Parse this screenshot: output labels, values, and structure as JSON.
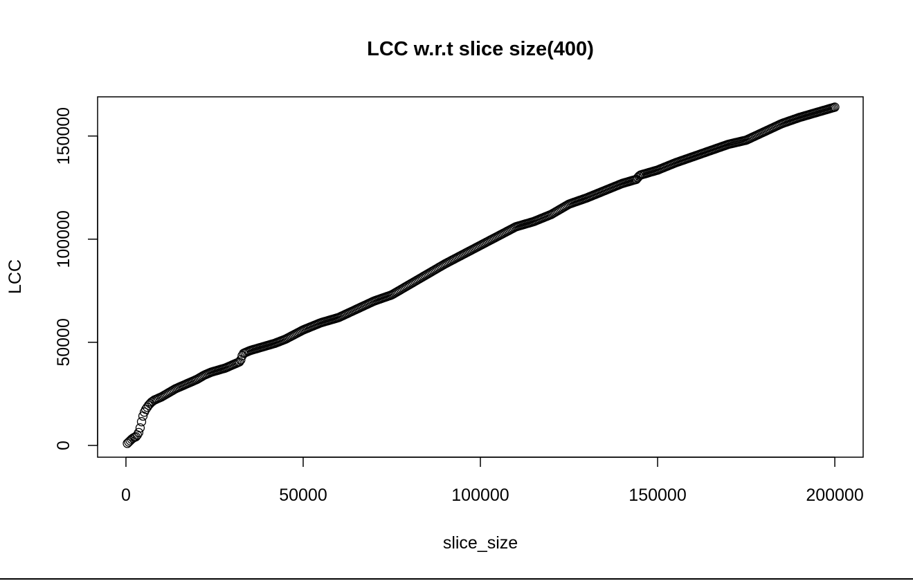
{
  "chart_data": {
    "type": "scatter",
    "title": "LCC w.r.t slice size(400)",
    "xlabel": "slice_size",
    "ylabel": "LCC",
    "xlim": [
      -8000,
      208000
    ],
    "ylim": [
      -5700,
      169000
    ],
    "x_ticks": [
      0,
      50000,
      100000,
      150000,
      200000
    ],
    "x_tick_labels": [
      "0",
      "50000",
      "100000",
      "150000",
      "200000"
    ],
    "y_ticks": [
      0,
      50000,
      100000,
      150000
    ],
    "y_tick_labels": [
      "0",
      "50000",
      "100000",
      "150000"
    ],
    "grid": false,
    "marker": "open-circle",
    "color": "#000000",
    "step": 400,
    "curve_x": [
      400,
      1000,
      1600,
      2200,
      2800,
      3400,
      3800,
      4200,
      4600,
      5000,
      5600,
      6400,
      7200,
      8000,
      10000,
      12000,
      14000,
      16000,
      18000,
      20000,
      22000,
      24000,
      26000,
      28000,
      30000,
      32000,
      32400,
      33000,
      35000,
      38000,
      42000,
      45000,
      50000,
      55000,
      60000,
      65000,
      70000,
      75000,
      80000,
      85000,
      90000,
      95000,
      100000,
      105000,
      110000,
      115000,
      120000,
      125000,
      130000,
      135000,
      140000,
      144000,
      145000,
      150000,
      155000,
      160000,
      165000,
      170000,
      175000,
      180000,
      185000,
      190000,
      195000,
      200000
    ],
    "curve_y": [
      1000,
      2000,
      3000,
      3800,
      4200,
      5500,
      7000,
      10000,
      13000,
      15500,
      17500,
      19500,
      21000,
      22000,
      23500,
      25500,
      27500,
      29000,
      30500,
      32000,
      34000,
      35500,
      36500,
      37500,
      39000,
      40500,
      41500,
      44500,
      46000,
      47500,
      49500,
      51500,
      56000,
      59500,
      62000,
      66000,
      70000,
      73000,
      78000,
      83000,
      88000,
      92500,
      97000,
      101500,
      106000,
      108500,
      112000,
      117000,
      120000,
      123500,
      127000,
      129000,
      131000,
      133500,
      137000,
      140000,
      143000,
      146000,
      148000,
      152000,
      156000,
      159000,
      161500,
      164000
    ]
  }
}
